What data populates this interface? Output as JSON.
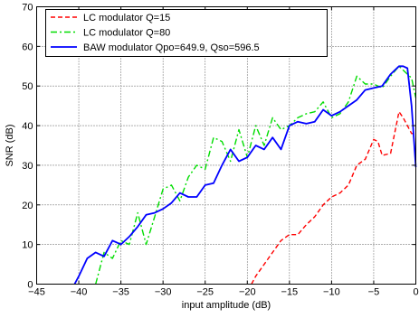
{
  "chart_data": {
    "type": "line",
    "title": "",
    "xlabel": "input amplitude (dB)",
    "ylabel": "SNR (dB)",
    "xlim": [
      -45,
      0
    ],
    "ylim": [
      0,
      70
    ],
    "xticks": [
      -45,
      -40,
      -35,
      -30,
      -25,
      -20,
      -15,
      -10,
      -5,
      0
    ],
    "yticks": [
      0,
      10,
      20,
      30,
      40,
      50,
      60,
      70
    ],
    "grid": true,
    "legend_position": "top-left",
    "series": [
      {
        "name": "LC modulator Q=15",
        "color": "#ff0000",
        "style": "dashed",
        "points": [
          [
            -19.5,
            0
          ],
          [
            -19,
            2
          ],
          [
            -18,
            5
          ],
          [
            -17,
            8
          ],
          [
            -16,
            11
          ],
          [
            -15,
            12.5
          ],
          [
            -14,
            12.5
          ],
          [
            -13,
            15
          ],
          [
            -12,
            17
          ],
          [
            -11,
            20
          ],
          [
            -10,
            22
          ],
          [
            -9,
            23
          ],
          [
            -8,
            25
          ],
          [
            -7,
            30
          ],
          [
            -6,
            31.5
          ],
          [
            -5,
            36.5
          ],
          [
            -4.5,
            36
          ],
          [
            -4,
            32.5
          ],
          [
            -3,
            33
          ],
          [
            -2,
            43.5
          ],
          [
            -1.5,
            42
          ],
          [
            -1,
            40
          ],
          [
            -0.5,
            38
          ],
          [
            0,
            38
          ]
        ]
      },
      {
        "name": "LC modulator Q=80",
        "color": "#00dd00",
        "style": "dashdot",
        "points": [
          [
            -38,
            0
          ],
          [
            -37,
            8
          ],
          [
            -36,
            6.5
          ],
          [
            -35,
            11
          ],
          [
            -34,
            10
          ],
          [
            -33,
            18
          ],
          [
            -32,
            10
          ],
          [
            -31,
            17
          ],
          [
            -30,
            24
          ],
          [
            -29,
            25
          ],
          [
            -28,
            21
          ],
          [
            -27,
            27
          ],
          [
            -26,
            30
          ],
          [
            -25,
            29
          ],
          [
            -24,
            37
          ],
          [
            -23,
            36
          ],
          [
            -22,
            31
          ],
          [
            -21,
            39
          ],
          [
            -20,
            32
          ],
          [
            -19,
            40
          ],
          [
            -18,
            35
          ],
          [
            -17,
            42
          ],
          [
            -16,
            39
          ],
          [
            -15,
            40
          ],
          [
            -14,
            42
          ],
          [
            -13,
            43
          ],
          [
            -12,
            43.5
          ],
          [
            -11,
            46
          ],
          [
            -10,
            42
          ],
          [
            -9,
            43
          ],
          [
            -8,
            46
          ],
          [
            -7,
            52.5
          ],
          [
            -6,
            50.5
          ],
          [
            -5,
            50.5
          ],
          [
            -4,
            49.5
          ],
          [
            -3,
            52.5
          ],
          [
            -2,
            55
          ],
          [
            -1,
            53
          ],
          [
            -0.5,
            52
          ],
          [
            0,
            47
          ]
        ]
      },
      {
        "name": "BAW modulator Qpo=649.9, Qso=596.5",
        "color": "#0000ff",
        "style": "solid",
        "points": [
          [
            -40.5,
            0
          ],
          [
            -40,
            2
          ],
          [
            -39,
            6.5
          ],
          [
            -38,
            8
          ],
          [
            -37,
            7
          ],
          [
            -36,
            11
          ],
          [
            -35,
            10
          ],
          [
            -34,
            12
          ],
          [
            -33,
            14.5
          ],
          [
            -32,
            17.5
          ],
          [
            -31,
            18
          ],
          [
            -30,
            19
          ],
          [
            -29,
            20.5
          ],
          [
            -28,
            23
          ],
          [
            -27,
            22
          ],
          [
            -26,
            22
          ],
          [
            -25,
            25
          ],
          [
            -24,
            25.5
          ],
          [
            -23,
            30
          ],
          [
            -22,
            34
          ],
          [
            -21,
            31
          ],
          [
            -20,
            32
          ],
          [
            -19,
            35
          ],
          [
            -18,
            34
          ],
          [
            -17,
            37
          ],
          [
            -16,
            34
          ],
          [
            -15,
            40
          ],
          [
            -14,
            41
          ],
          [
            -13,
            40.5
          ],
          [
            -12,
            41
          ],
          [
            -11,
            44
          ],
          [
            -10,
            42.5
          ],
          [
            -9,
            43.5
          ],
          [
            -8,
            45
          ],
          [
            -7,
            46.5
          ],
          [
            -6,
            49
          ],
          [
            -5,
            49.5
          ],
          [
            -4,
            50
          ],
          [
            -3,
            53
          ],
          [
            -2,
            55
          ],
          [
            -1.5,
            55
          ],
          [
            -1,
            54.5
          ],
          [
            -0.5,
            45
          ],
          [
            0,
            29.5
          ]
        ]
      }
    ]
  }
}
